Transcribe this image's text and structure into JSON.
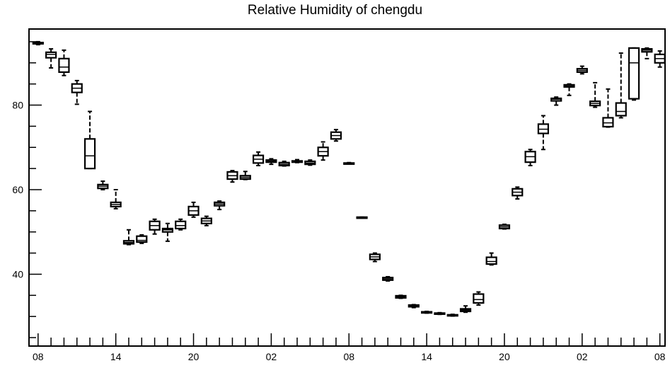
{
  "chart_data": {
    "type": "box",
    "title": "Relative Humidity of chengdu",
    "xlabel": "",
    "ylabel": "",
    "ylim": [
      23,
      98
    ],
    "xlim": [
      -0.7,
      48.4
    ],
    "y_major_ticks": [
      40,
      60,
      80
    ],
    "y_minor_step": 5,
    "x_tick_labels": [
      {
        "x": 0,
        "label": "08"
      },
      {
        "x": 6,
        "label": "14"
      },
      {
        "x": 12,
        "label": "20"
      },
      {
        "x": 18,
        "label": "02"
      },
      {
        "x": 24,
        "label": "08"
      },
      {
        "x": 30,
        "label": "14"
      },
      {
        "x": 36,
        "label": "20"
      },
      {
        "x": 42,
        "label": "02"
      },
      {
        "x": 48,
        "label": "08"
      }
    ],
    "boxes": [
      {
        "x": 0,
        "min": 94.3,
        "q1": 94.5,
        "median": 94.6,
        "q3": 94.8,
        "max": 95.0
      },
      {
        "x": 1,
        "min": 88.8,
        "q1": 91.2,
        "median": 92.0,
        "q3": 92.5,
        "max": 93.3
      },
      {
        "x": 2,
        "min": 87.0,
        "q1": 87.8,
        "median": 89.0,
        "q3": 91.0,
        "max": 93.0
      },
      {
        "x": 3,
        "min": 80.2,
        "q1": 83.0,
        "median": 84.0,
        "q3": 85.0,
        "max": 85.8
      },
      {
        "x": 4,
        "min": 65.0,
        "q1": 65.0,
        "median": 68.0,
        "q3": 72.0,
        "max": 78.5
      },
      {
        "x": 5,
        "min": 60.0,
        "q1": 60.3,
        "median": 60.8,
        "q3": 61.2,
        "max": 62.0
      },
      {
        "x": 6,
        "min": 55.5,
        "q1": 56.0,
        "median": 56.5,
        "q3": 57.0,
        "max": 60.0
      },
      {
        "x": 7,
        "min": 47.0,
        "q1": 47.2,
        "median": 47.5,
        "q3": 47.9,
        "max": 50.5
      },
      {
        "x": 8,
        "min": 47.3,
        "q1": 47.6,
        "median": 48.0,
        "q3": 49.0,
        "max": 49.3
      },
      {
        "x": 9,
        "min": 49.5,
        "q1": 50.5,
        "median": 51.5,
        "q3": 52.5,
        "max": 53.0
      },
      {
        "x": 10,
        "min": 47.8,
        "q1": 50.0,
        "median": 50.5,
        "q3": 50.8,
        "max": 52.0
      },
      {
        "x": 11,
        "min": 50.5,
        "q1": 50.8,
        "median": 51.5,
        "q3": 52.5,
        "max": 53.0
      },
      {
        "x": 12,
        "min": 53.5,
        "q1": 54.0,
        "median": 55.0,
        "q3": 56.0,
        "max": 57.0
      },
      {
        "x": 13,
        "min": 51.5,
        "q1": 52.0,
        "median": 52.6,
        "q3": 53.2,
        "max": 53.7
      },
      {
        "x": 14,
        "min": 55.3,
        "q1": 56.2,
        "median": 56.6,
        "q3": 57.0,
        "max": 57.3
      },
      {
        "x": 15,
        "min": 61.8,
        "q1": 62.5,
        "median": 63.3,
        "q3": 64.2,
        "max": 64.5
      },
      {
        "x": 16,
        "min": 62.4,
        "q1": 62.5,
        "median": 62.9,
        "q3": 63.3,
        "max": 64.3
      },
      {
        "x": 17,
        "min": 65.7,
        "q1": 66.3,
        "median": 67.2,
        "q3": 68.1,
        "max": 68.9
      },
      {
        "x": 18,
        "min": 66.0,
        "q1": 66.5,
        "median": 66.7,
        "q3": 67.0,
        "max": 67.3
      },
      {
        "x": 19,
        "min": 65.6,
        "q1": 65.7,
        "median": 66.0,
        "q3": 66.4,
        "max": 66.7
      },
      {
        "x": 20,
        "min": 66.4,
        "q1": 66.5,
        "median": 66.6,
        "q3": 66.8,
        "max": 67.1
      },
      {
        "x": 21,
        "min": 65.8,
        "q1": 66.0,
        "median": 66.3,
        "q3": 66.7,
        "max": 67.0
      },
      {
        "x": 22,
        "min": 67.0,
        "q1": 68.0,
        "median": 69.0,
        "q3": 70.0,
        "max": 71.3
      },
      {
        "x": 23,
        "min": 71.5,
        "q1": 72.0,
        "median": 72.8,
        "q3": 73.6,
        "max": 74.2
      },
      {
        "x": 24,
        "min": 66.1,
        "q1": 66.1,
        "median": 66.2,
        "q3": 66.3,
        "max": 66.4
      },
      {
        "x": 25,
        "min": 53.3,
        "q1": 53.3,
        "median": 53.4,
        "q3": 53.5,
        "max": 53.5
      },
      {
        "x": 26,
        "min": 43.0,
        "q1": 43.5,
        "median": 44.1,
        "q3": 44.7,
        "max": 45.0
      },
      {
        "x": 27,
        "min": 38.4,
        "q1": 38.6,
        "median": 38.9,
        "q3": 39.2,
        "max": 39.4
      },
      {
        "x": 28,
        "min": 34.3,
        "q1": 34.4,
        "median": 34.6,
        "q3": 34.9,
        "max": 35.0
      },
      {
        "x": 29,
        "min": 32.1,
        "q1": 32.3,
        "median": 32.5,
        "q3": 32.7,
        "max": 32.8
      },
      {
        "x": 30,
        "min": 30.8,
        "q1": 30.9,
        "median": 31.0,
        "q3": 31.1,
        "max": 31.2
      },
      {
        "x": 31,
        "min": 30.5,
        "q1": 30.6,
        "median": 30.7,
        "q3": 30.8,
        "max": 30.9
      },
      {
        "x": 32,
        "min": 30.1,
        "q1": 30.2,
        "median": 30.3,
        "q3": 30.4,
        "max": 30.5
      },
      {
        "x": 33,
        "min": 31.0,
        "q1": 31.2,
        "median": 31.5,
        "q3": 31.8,
        "max": 32.5
      },
      {
        "x": 34,
        "min": 32.7,
        "q1": 33.2,
        "median": 34.0,
        "q3": 35.3,
        "max": 35.8
      },
      {
        "x": 35,
        "min": 42.2,
        "q1": 42.4,
        "median": 43.0,
        "q3": 44.0,
        "max": 45.0
      },
      {
        "x": 36,
        "min": 50.7,
        "q1": 50.8,
        "median": 51.2,
        "q3": 51.6,
        "max": 51.8
      },
      {
        "x": 37,
        "min": 57.8,
        "q1": 58.6,
        "median": 59.4,
        "q3": 60.2,
        "max": 60.6
      },
      {
        "x": 38,
        "min": 65.7,
        "q1": 66.5,
        "median": 67.8,
        "q3": 69.0,
        "max": 69.5
      },
      {
        "x": 39,
        "min": 69.5,
        "q1": 73.3,
        "median": 74.3,
        "q3": 75.5,
        "max": 77.5
      },
      {
        "x": 40,
        "min": 80.0,
        "q1": 81.0,
        "median": 81.4,
        "q3": 81.6,
        "max": 81.9
      },
      {
        "x": 41,
        "min": 82.3,
        "q1": 84.3,
        "median": 84.6,
        "q3": 84.8,
        "max": 85.0
      },
      {
        "x": 42,
        "min": 87.4,
        "q1": 87.8,
        "median": 88.2,
        "q3": 88.6,
        "max": 89.2
      },
      {
        "x": 43,
        "min": 79.5,
        "q1": 79.9,
        "median": 80.4,
        "q3": 80.9,
        "max": 85.3
      },
      {
        "x": 44,
        "min": 74.8,
        "q1": 74.9,
        "median": 75.8,
        "q3": 77.0,
        "max": 83.8
      },
      {
        "x": 45,
        "min": 77.0,
        "q1": 77.5,
        "median": 78.5,
        "q3": 80.5,
        "max": 92.3
      },
      {
        "x": 46,
        "min": 81.2,
        "q1": 81.5,
        "median": 90.0,
        "q3": 93.5,
        "max": 93.5
      },
      {
        "x": 47,
        "min": 91.0,
        "q1": 92.6,
        "median": 93.0,
        "q3": 93.3,
        "max": 93.5
      },
      {
        "x": 48,
        "min": 89.0,
        "q1": 90.0,
        "median": 91.0,
        "q3": 92.0,
        "max": 92.8
      }
    ]
  }
}
